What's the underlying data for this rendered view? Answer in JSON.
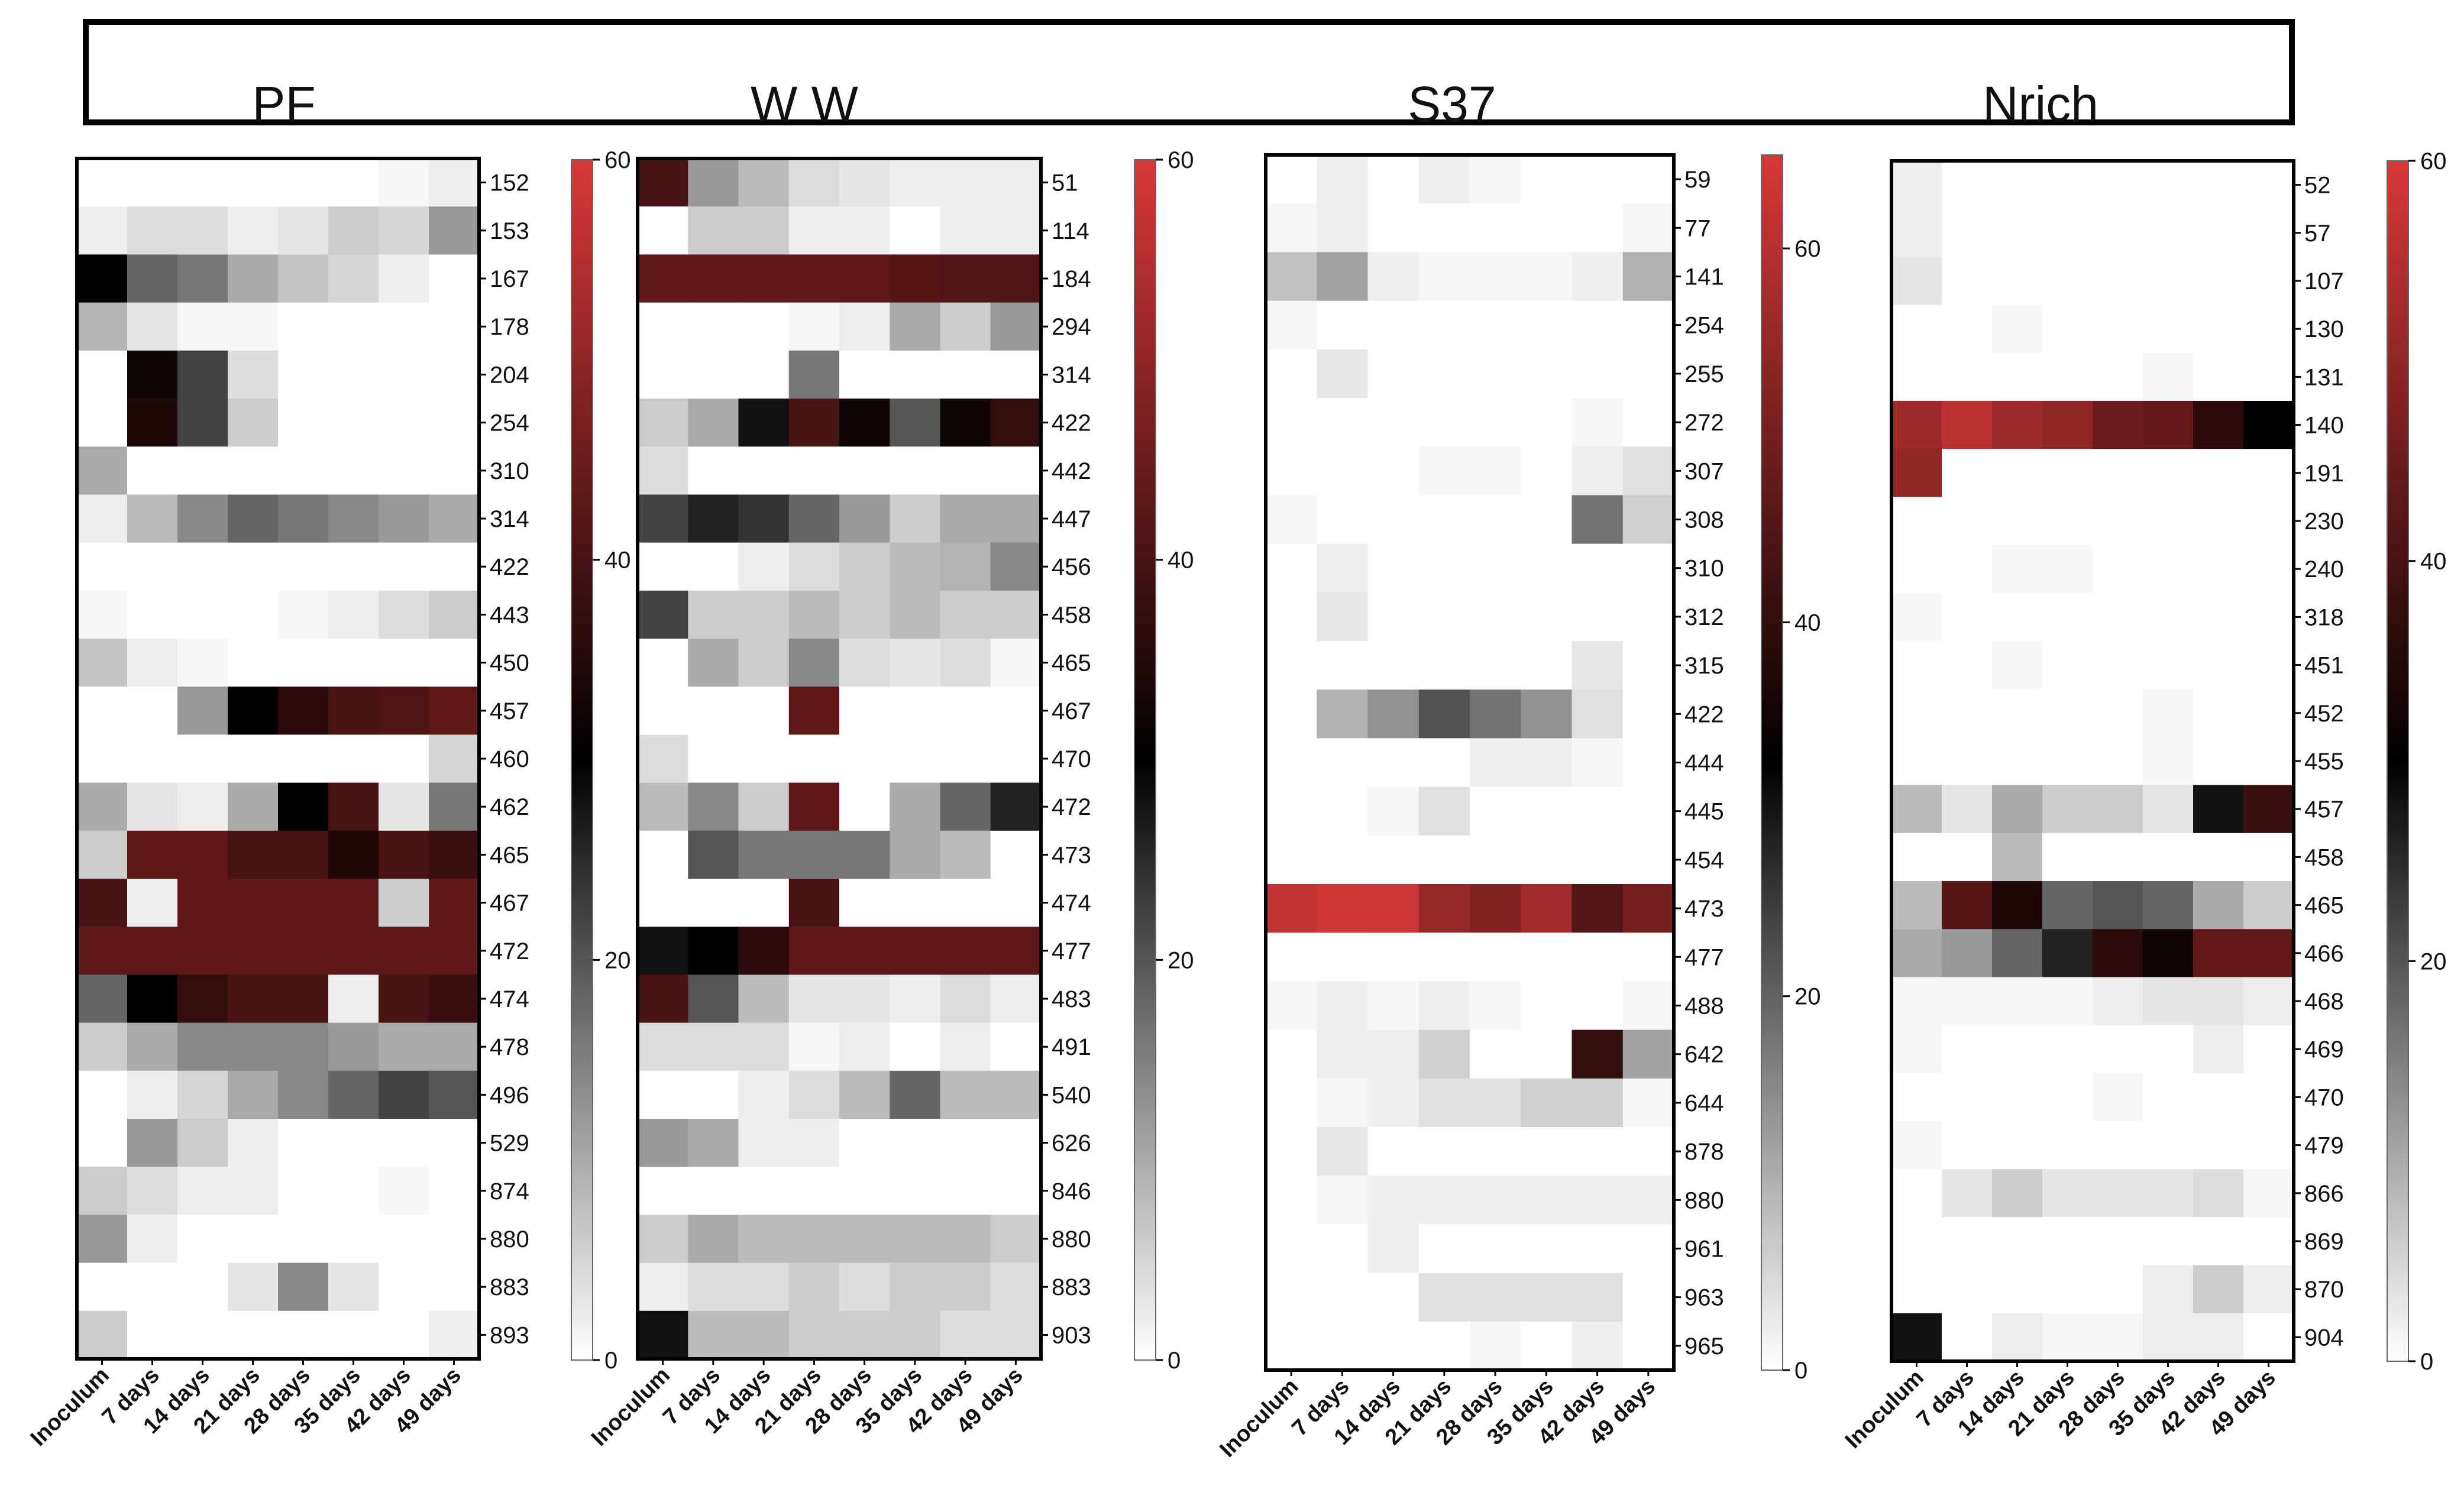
{
  "figure": {
    "col_labels": [
      "Inoculum",
      "7 days",
      "14 days",
      "21 days",
      "28 days",
      "35 days",
      "42 days",
      "49 days"
    ],
    "color_stops": [
      "#ffffff",
      "#000000",
      "#d83838"
    ]
  },
  "chart_data": [
    {
      "type": "heatmap",
      "title": "PF",
      "xlabel": "",
      "ylabel": "",
      "columns": [
        "Inoculum",
        "7 days",
        "14 days",
        "21 days",
        "28 days",
        "35 days",
        "42 days",
        "49 days"
      ],
      "rows": [
        "152",
        "153",
        "167",
        "178",
        "204",
        "254",
        "310",
        "314",
        "422",
        "443",
        "450",
        "457",
        "460",
        "462",
        "465",
        "467",
        "472",
        "474",
        "478",
        "496",
        "529",
        "874",
        "880",
        "883",
        "893"
      ],
      "values": [
        [
          0,
          0,
          0,
          0,
          0,
          0,
          1,
          2
        ],
        [
          2,
          4,
          4,
          2,
          3,
          6,
          5,
          12
        ],
        [
          30,
          18,
          16,
          10,
          7,
          5,
          2,
          0
        ],
        [
          9,
          3,
          1,
          1,
          0,
          0,
          0,
          0
        ],
        [
          0,
          32,
          22,
          4,
          0,
          0,
          0,
          0
        ],
        [
          0,
          34,
          22,
          6,
          0,
          0,
          0,
          0
        ],
        [
          10,
          0,
          0,
          0,
          0,
          0,
          0,
          0
        ],
        [
          2,
          8,
          14,
          18,
          16,
          14,
          12,
          10
        ],
        [
          0,
          0,
          0,
          0,
          0,
          0,
          0,
          0
        ],
        [
          1,
          0,
          0,
          0,
          1,
          2,
          4,
          6
        ],
        [
          7,
          2,
          1,
          0,
          0,
          0,
          0,
          0
        ],
        [
          0,
          0,
          12,
          30,
          36,
          40,
          41,
          43
        ],
        [
          0,
          0,
          0,
          0,
          0,
          0,
          0,
          5
        ],
        [
          10,
          3,
          2,
          10,
          30,
          40,
          3,
          16
        ],
        [
          6,
          43,
          43,
          40,
          40,
          34,
          40,
          38
        ],
        [
          40,
          2,
          43,
          43,
          43,
          43,
          6,
          43
        ],
        [
          43,
          43,
          43,
          43,
          43,
          43,
          43,
          43
        ],
        [
          18,
          30,
          37,
          40,
          40,
          2,
          40,
          38
        ],
        [
          6,
          10,
          14,
          14,
          14,
          12,
          10,
          10
        ],
        [
          0,
          2,
          5,
          10,
          14,
          18,
          22,
          20
        ],
        [
          0,
          12,
          6,
          2,
          0,
          0,
          0,
          0
        ],
        [
          6,
          4,
          2,
          2,
          0,
          0,
          1,
          0
        ],
        [
          12,
          2,
          0,
          0,
          0,
          0,
          0,
          0
        ],
        [
          0,
          0,
          0,
          3,
          14,
          3,
          0,
          0
        ],
        [
          6,
          0,
          0,
          0,
          0,
          0,
          0,
          2
        ]
      ],
      "colorbar": {
        "min": 0,
        "max": 60,
        "ticks": [
          0,
          20,
          40,
          60
        ]
      }
    },
    {
      "type": "heatmap",
      "title": "W W",
      "xlabel": "",
      "ylabel": "",
      "columns": [
        "Inoculum",
        "7 days",
        "14 days",
        "21 days",
        "28 days",
        "35 days",
        "42 days",
        "49 days"
      ],
      "rows": [
        "51",
        "114",
        "184",
        "294",
        "314",
        "422",
        "442",
        "447",
        "456",
        "458",
        "465",
        "467",
        "470",
        "472",
        "473",
        "474",
        "477",
        "483",
        "491",
        "540",
        "626",
        "846",
        "880",
        "883",
        "903"
      ],
      "values": [
        [
          40,
          12,
          8,
          4,
          3,
          2,
          2,
          2
        ],
        [
          0,
          6,
          6,
          2,
          2,
          0,
          2,
          2
        ],
        [
          43,
          43,
          43,
          43,
          43,
          42,
          41,
          41
        ],
        [
          0,
          0,
          0,
          1,
          2,
          10,
          6,
          12
        ],
        [
          0,
          0,
          0,
          16,
          0,
          0,
          0,
          0
        ],
        [
          6,
          10,
          28,
          40,
          32,
          20,
          32,
          37
        ],
        [
          4,
          0,
          0,
          0,
          0,
          0,
          0,
          0
        ],
        [
          22,
          26,
          24,
          18,
          12,
          6,
          10,
          10
        ],
        [
          0,
          0,
          2,
          4,
          6,
          8,
          9,
          14
        ],
        [
          22,
          6,
          6,
          8,
          6,
          8,
          6,
          6
        ],
        [
          0,
          10,
          6,
          14,
          4,
          3,
          4,
          1
        ],
        [
          0,
          0,
          0,
          43,
          0,
          0,
          0,
          0
        ],
        [
          4,
          0,
          0,
          0,
          0,
          0,
          0,
          0
        ],
        [
          8,
          14,
          6,
          43,
          0,
          10,
          18,
          26
        ],
        [
          0,
          20,
          16,
          16,
          16,
          10,
          8,
          0
        ],
        [
          0,
          0,
          0,
          40,
          0,
          0,
          0,
          0
        ],
        [
          28,
          30,
          36,
          43,
          43,
          43,
          43,
          43
        ],
        [
          40,
          20,
          8,
          3,
          3,
          2,
          4,
          2
        ],
        [
          4,
          4,
          4,
          1,
          2,
          0,
          2,
          0
        ],
        [
          0,
          0,
          2,
          4,
          8,
          18,
          8,
          8
        ],
        [
          12,
          10,
          2,
          2,
          0,
          0,
          0,
          0
        ],
        [
          0,
          0,
          0,
          0,
          0,
          0,
          0,
          0
        ],
        [
          6,
          10,
          8,
          8,
          8,
          8,
          8,
          6
        ],
        [
          2,
          4,
          4,
          6,
          4,
          6,
          6,
          4
        ],
        [
          28,
          8,
          8,
          6,
          6,
          6,
          4,
          4
        ]
      ],
      "colorbar": {
        "min": 0,
        "max": 60,
        "ticks": [
          0,
          20,
          40,
          60
        ]
      }
    },
    {
      "type": "heatmap",
      "title": "S37",
      "xlabel": "",
      "ylabel": "",
      "columns": [
        "Inoculum",
        "7 days",
        "14 days",
        "21 days",
        "28 days",
        "35 days",
        "42 days",
        "49 days"
      ],
      "rows": [
        "59",
        "77",
        "141",
        "254",
        "255",
        "272",
        "307",
        "308",
        "310",
        "312",
        "315",
        "422",
        "444",
        "445",
        "454",
        "473",
        "477",
        "488",
        "642",
        "644",
        "878",
        "880",
        "961",
        "963",
        "965"
      ],
      "values": [
        [
          0,
          2,
          0,
          2,
          1,
          0,
          0,
          0
        ],
        [
          1,
          2,
          0,
          0,
          0,
          0,
          0,
          1
        ],
        [
          8,
          12,
          2,
          1,
          1,
          1,
          2,
          10
        ],
        [
          1,
          0,
          0,
          0,
          0,
          0,
          0,
          0
        ],
        [
          0,
          3,
          0,
          0,
          0,
          0,
          0,
          0
        ],
        [
          0,
          0,
          0,
          0,
          0,
          0,
          1,
          0
        ],
        [
          0,
          0,
          0,
          1,
          1,
          0,
          2,
          4
        ],
        [
          1,
          0,
          0,
          0,
          0,
          0,
          18,
          6
        ],
        [
          0,
          2,
          0,
          0,
          0,
          0,
          0,
          0
        ],
        [
          0,
          3,
          0,
          0,
          0,
          0,
          0,
          0
        ],
        [
          0,
          0,
          0,
          0,
          0,
          0,
          3,
          0
        ],
        [
          0,
          10,
          14,
          22,
          18,
          14,
          4,
          0
        ],
        [
          0,
          0,
          0,
          0,
          2,
          2,
          1,
          0
        ],
        [
          0,
          0,
          1,
          4,
          0,
          0,
          0,
          0
        ],
        [
          0,
          0,
          0,
          0,
          0,
          0,
          0,
          0
        ],
        [
          62,
          64,
          63,
          55,
          52,
          57,
          45,
          50
        ],
        [
          0,
          0,
          0,
          0,
          0,
          0,
          0,
          0
        ],
        [
          1,
          2,
          1,
          2,
          1,
          0,
          0,
          1
        ],
        [
          0,
          2,
          2,
          6,
          0,
          0,
          40,
          12
        ],
        [
          0,
          1,
          2,
          4,
          4,
          6,
          6,
          1
        ],
        [
          0,
          3,
          0,
          0,
          0,
          0,
          0,
          0
        ],
        [
          0,
          1,
          2,
          2,
          2,
          2,
          2,
          2
        ],
        [
          0,
          0,
          2,
          0,
          0,
          0,
          0,
          0
        ],
        [
          0,
          0,
          0,
          4,
          4,
          4,
          4,
          0
        ],
        [
          0,
          0,
          0,
          0,
          1,
          0,
          2,
          0
        ]
      ],
      "colorbar": {
        "min": 0,
        "max": 65,
        "ticks": [
          0,
          20,
          40,
          60
        ]
      }
    },
    {
      "type": "heatmap",
      "title": "Nrich",
      "xlabel": "",
      "ylabel": "",
      "columns": [
        "Inoculum",
        "7 days",
        "14 days",
        "21 days",
        "28 days",
        "35 days",
        "42 days",
        "49 days"
      ],
      "rows": [
        "52",
        "57",
        "107",
        "130",
        "131",
        "140",
        "191",
        "230",
        "240",
        "318",
        "451",
        "452",
        "455",
        "457",
        "458",
        "465",
        "466",
        "468",
        "469",
        "470",
        "479",
        "866",
        "869",
        "870",
        "904"
      ],
      "values": [
        [
          2,
          0,
          0,
          0,
          0,
          0,
          0,
          0
        ],
        [
          2,
          0,
          0,
          0,
          0,
          0,
          0,
          0
        ],
        [
          3,
          0,
          0,
          0,
          0,
          0,
          0,
          0
        ],
        [
          0,
          0,
          1,
          0,
          0,
          0,
          0,
          0
        ],
        [
          0,
          0,
          0,
          0,
          0,
          1,
          0,
          0
        ],
        [
          52,
          56,
          52,
          50,
          45,
          44,
          36,
          30
        ],
        [
          50,
          0,
          0,
          0,
          0,
          0,
          0,
          0
        ],
        [
          0,
          0,
          0,
          0,
          0,
          0,
          0,
          0
        ],
        [
          0,
          0,
          1,
          1,
          0,
          0,
          0,
          0
        ],
        [
          1,
          0,
          0,
          0,
          0,
          0,
          0,
          0
        ],
        [
          0,
          0,
          1,
          0,
          0,
          0,
          0,
          0
        ],
        [
          0,
          0,
          0,
          0,
          0,
          1,
          0,
          0
        ],
        [
          0,
          0,
          0,
          0,
          0,
          1,
          0,
          0
        ],
        [
          8,
          3,
          10,
          6,
          6,
          3,
          28,
          38
        ],
        [
          0,
          0,
          8,
          0,
          0,
          0,
          0,
          0
        ],
        [
          8,
          42,
          34,
          18,
          20,
          18,
          10,
          6
        ],
        [
          10,
          12,
          18,
          26,
          36,
          32,
          44,
          44
        ],
        [
          1,
          1,
          1,
          1,
          2,
          3,
          3,
          2
        ],
        [
          1,
          0,
          0,
          0,
          0,
          0,
          2,
          0
        ],
        [
          0,
          0,
          0,
          0,
          1,
          0,
          0,
          0
        ],
        [
          1,
          0,
          0,
          0,
          0,
          0,
          0,
          0
        ],
        [
          0,
          3,
          6,
          3,
          3,
          3,
          4,
          1
        ],
        [
          0,
          0,
          0,
          0,
          0,
          0,
          0,
          0
        ],
        [
          0,
          0,
          0,
          0,
          0,
          2,
          6,
          2
        ],
        [
          28,
          0,
          2,
          1,
          1,
          2,
          2,
          0
        ]
      ],
      "colorbar": {
        "min": 0,
        "max": 60,
        "ticks": [
          0,
          20,
          40,
          60
        ]
      }
    }
  ]
}
